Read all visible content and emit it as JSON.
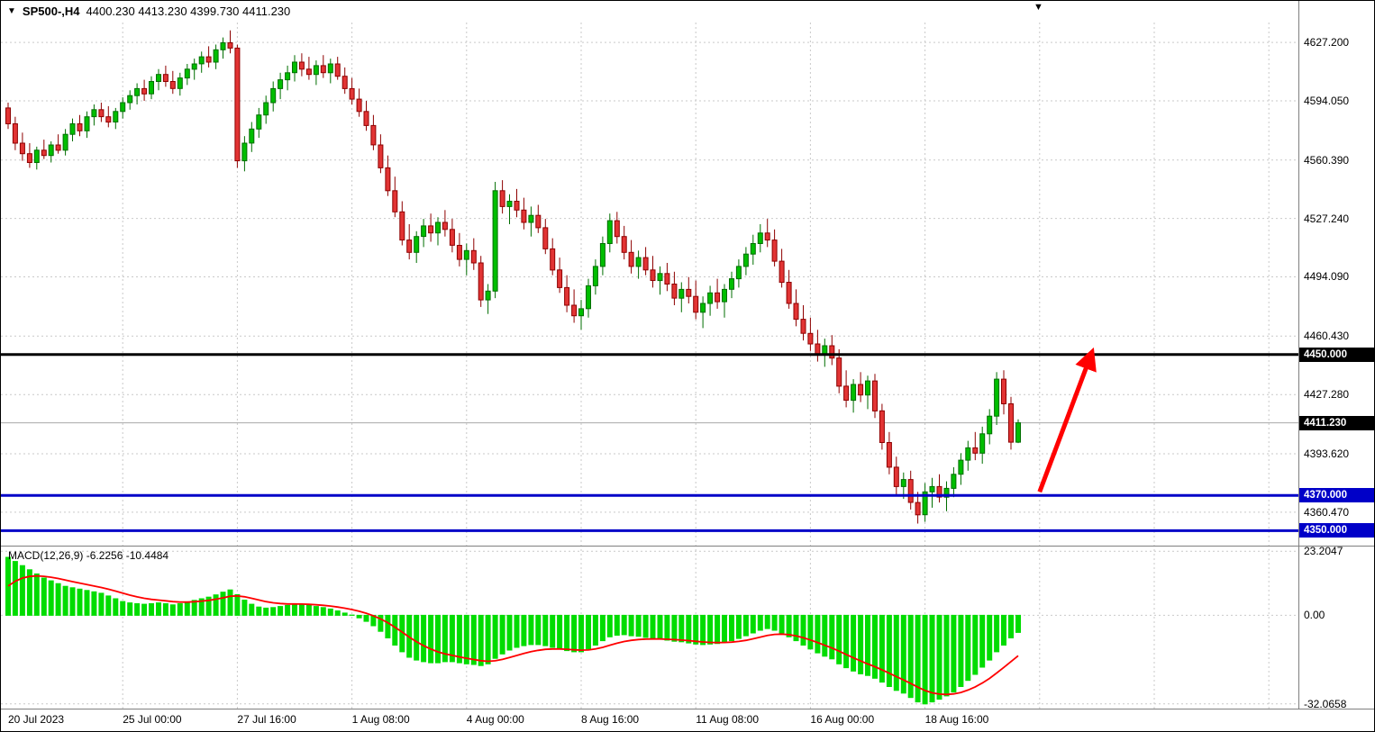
{
  "header": {
    "dropdown_icon": "▼",
    "symbol": "SP500-,H4",
    "ohlc": "4400.230 4413.230 4399.730 4411.230"
  },
  "icons": {
    "shift_marker": "▼"
  },
  "colors": {
    "candle_up": "#00BE00",
    "candle_up_border": "#006E00",
    "candle_down": "#E23434",
    "candle_down_border": "#8E0000",
    "macd_hist": "#00DC00",
    "macd_signal": "#FF0000",
    "grid": "#C9C9C9",
    "separator": "#7F7F7F",
    "current_price_line": "#A8A8A8",
    "level_black": "#000000",
    "level_blue": "#0000C8",
    "arrow": "#FF0000"
  },
  "chart_data": {
    "type": "candlestick",
    "symbol": "SP500",
    "timeframe": "H4",
    "ylim": [
      4342,
      4638.5
    ],
    "y_ticks": [
      {
        "value": 4627.2,
        "label": "4627.200"
      },
      {
        "value": 4594.05,
        "label": "4594.050"
      },
      {
        "value": 4560.39,
        "label": "4560.390"
      },
      {
        "value": 4527.24,
        "label": "4527.240"
      },
      {
        "value": 4494.09,
        "label": "4494.090"
      },
      {
        "value": 4460.43,
        "label": "4460.430"
      },
      {
        "value": 4427.28,
        "label": "4427.280"
      },
      {
        "value": 4393.62,
        "label": "4393.620"
      },
      {
        "value": 4360.47,
        "label": "4360.470"
      }
    ],
    "x_ticks": [
      {
        "bar": 0,
        "label": "20 Jul 2023"
      },
      {
        "bar": 16,
        "label": "25 Jul 00:00"
      },
      {
        "bar": 32,
        "label": "27 Jul 16:00"
      },
      {
        "bar": 48,
        "label": "1 Aug 08:00"
      },
      {
        "bar": 64,
        "label": "4 Aug 00:00"
      },
      {
        "bar": 80,
        "label": "8 Aug 16:00"
      },
      {
        "bar": 96,
        "label": "11 Aug 08:00"
      },
      {
        "bar": 112,
        "label": "16 Aug 00:00"
      },
      {
        "bar": 128,
        "label": "18 Aug 16:00"
      }
    ],
    "grid_extra_bars": [
      144,
      160,
      176
    ],
    "levels": [
      {
        "price": 4450,
        "label": "4450.000",
        "color": "#000000"
      },
      {
        "price": 4370,
        "label": "4370.000",
        "color": "#0000C8"
      },
      {
        "price": 4350,
        "label": "4350.000",
        "color": "#0000C8"
      }
    ],
    "current_price": {
      "price": 4411.23,
      "label": "4411.230",
      "tag_color": "#000000"
    },
    "trend_arrow": {
      "from_bar": 144,
      "from_price": 4372,
      "to_bar": 151,
      "to_price": 4448,
      "color": "#FF0000"
    },
    "candles": [
      [
        4590,
        4593,
        4578,
        4581
      ],
      [
        4581,
        4585,
        4566,
        4570
      ],
      [
        4570,
        4576,
        4560,
        4564
      ],
      [
        4564,
        4570,
        4556,
        4559
      ],
      [
        4559,
        4568,
        4555,
        4566
      ],
      [
        4566,
        4572,
        4561,
        4563
      ],
      [
        4563,
        4571,
        4559,
        4569
      ],
      [
        4569,
        4575,
        4564,
        4566
      ],
      [
        4566,
        4578,
        4563,
        4575
      ],
      [
        4575,
        4584,
        4571,
        4581
      ],
      [
        4581,
        4586,
        4574,
        4577
      ],
      [
        4577,
        4588,
        4573,
        4585
      ],
      [
        4585,
        4592,
        4580,
        4589
      ],
      [
        4589,
        4593,
        4582,
        4585
      ],
      [
        4585,
        4591,
        4579,
        4582
      ],
      [
        4582,
        4590,
        4578,
        4588
      ],
      [
        4588,
        4596,
        4584,
        4593
      ],
      [
        4593,
        4600,
        4589,
        4597
      ],
      [
        4597,
        4604,
        4592,
        4601
      ],
      [
        4601,
        4606,
        4594,
        4598
      ],
      [
        4598,
        4608,
        4595,
        4605
      ],
      [
        4605,
        4612,
        4600,
        4609
      ],
      [
        4609,
        4614,
        4602,
        4605
      ],
      [
        4605,
        4611,
        4598,
        4601
      ],
      [
        4601,
        4610,
        4597,
        4607
      ],
      [
        4607,
        4615,
        4603,
        4612
      ],
      [
        4612,
        4618,
        4606,
        4615
      ],
      [
        4615,
        4622,
        4610,
        4619
      ],
      [
        4619,
        4625,
        4613,
        4616
      ],
      [
        4616,
        4626,
        4612,
        4623
      ],
      [
        4623,
        4630,
        4618,
        4627
      ],
      [
        4627,
        4634,
        4621,
        4624
      ],
      [
        4624,
        4626,
        4556,
        4560
      ],
      [
        4560,
        4574,
        4554,
        4570
      ],
      [
        4570,
        4582,
        4565,
        4578
      ],
      [
        4578,
        4590,
        4573,
        4586
      ],
      [
        4586,
        4597,
        4581,
        4593
      ],
      [
        4593,
        4605,
        4588,
        4601
      ],
      [
        4601,
        4610,
        4595,
        4606
      ],
      [
        4606,
        4614,
        4600,
        4610
      ],
      [
        4610,
        4620,
        4605,
        4616
      ],
      [
        4616,
        4621,
        4608,
        4612
      ],
      [
        4612,
        4619,
        4606,
        4609
      ],
      [
        4609,
        4617,
        4603,
        4614
      ],
      [
        4614,
        4620,
        4607,
        4610
      ],
      [
        4610,
        4618,
        4604,
        4615
      ],
      [
        4615,
        4619,
        4606,
        4608
      ],
      [
        4608,
        4613,
        4598,
        4601
      ],
      [
        4601,
        4607,
        4592,
        4595
      ],
      [
        4595,
        4601,
        4585,
        4588
      ],
      [
        4588,
        4594,
        4577,
        4580
      ],
      [
        4580,
        4586,
        4566,
        4569
      ],
      [
        4569,
        4575,
        4553,
        4556
      ],
      [
        4556,
        4563,
        4540,
        4543
      ],
      [
        4543,
        4551,
        4528,
        4531
      ],
      [
        4531,
        4537,
        4512,
        4515
      ],
      [
        4515,
        4524,
        4504,
        4508
      ],
      [
        4508,
        4520,
        4502,
        4517
      ],
      [
        4517,
        4527,
        4511,
        4523
      ],
      [
        4523,
        4530,
        4514,
        4519
      ],
      [
        4519,
        4528,
        4512,
        4525
      ],
      [
        4525,
        4532,
        4517,
        4521
      ],
      [
        4521,
        4527,
        4508,
        4512
      ],
      [
        4512,
        4519,
        4500,
        4504
      ],
      [
        4504,
        4513,
        4495,
        4509
      ],
      [
        4509,
        4516,
        4498,
        4502
      ],
      [
        4502,
        4506,
        4477,
        4481
      ],
      [
        4481,
        4490,
        4473,
        4486
      ],
      [
        4486,
        4548,
        4482,
        4543
      ],
      [
        4543,
        4549,
        4530,
        4534
      ],
      [
        4534,
        4541,
        4524,
        4537
      ],
      [
        4537,
        4544,
        4528,
        4532
      ],
      [
        4532,
        4539,
        4521,
        4525
      ],
      [
        4525,
        4534,
        4517,
        4529
      ],
      [
        4529,
        4535,
        4519,
        4522
      ],
      [
        4522,
        4527,
        4507,
        4510
      ],
      [
        4510,
        4516,
        4495,
        4498
      ],
      [
        4498,
        4505,
        4485,
        4488
      ],
      [
        4488,
        4495,
        4474,
        4478
      ],
      [
        4478,
        4487,
        4468,
        4472
      ],
      [
        4472,
        4481,
        4464,
        4476
      ],
      [
        4476,
        4493,
        4471,
        4489
      ],
      [
        4489,
        4504,
        4484,
        4500
      ],
      [
        4500,
        4517,
        4495,
        4513
      ],
      [
        4513,
        4530,
        4508,
        4526
      ],
      [
        4526,
        4531,
        4513,
        4517
      ],
      [
        4517,
        4523,
        4504,
        4508
      ],
      [
        4508,
        4515,
        4496,
        4500
      ],
      [
        4500,
        4509,
        4493,
        4505
      ],
      [
        4505,
        4511,
        4495,
        4498
      ],
      [
        4498,
        4506,
        4488,
        4492
      ],
      [
        4492,
        4500,
        4484,
        4496
      ],
      [
        4496,
        4502,
        4486,
        4490
      ],
      [
        4490,
        4497,
        4478,
        4482
      ],
      [
        4482,
        4491,
        4474,
        4487
      ],
      [
        4487,
        4494,
        4479,
        4483
      ],
      [
        4483,
        4492,
        4470,
        4474
      ],
      [
        4474,
        4483,
        4465,
        4479
      ],
      [
        4479,
        4489,
        4472,
        4485
      ],
      [
        4485,
        4493,
        4476,
        4480
      ],
      [
        4480,
        4490,
        4471,
        4487
      ],
      [
        4487,
        4497,
        4482,
        4493
      ],
      [
        4493,
        4504,
        4488,
        4500
      ],
      [
        4500,
        4511,
        4495,
        4507
      ],
      [
        4507,
        4518,
        4501,
        4513
      ],
      [
        4513,
        4524,
        4508,
        4519
      ],
      [
        4519,
        4527,
        4511,
        4515
      ],
      [
        4515,
        4521,
        4500,
        4503
      ],
      [
        4503,
        4510,
        4488,
        4491
      ],
      [
        4491,
        4498,
        4476,
        4479
      ],
      [
        4479,
        4487,
        4466,
        4470
      ],
      [
        4470,
        4478,
        4458,
        4462
      ],
      [
        4462,
        4471,
        4452,
        4456
      ],
      [
        4456,
        4464,
        4446,
        4450
      ],
      [
        4450,
        4459,
        4443,
        4455
      ],
      [
        4455,
        4461,
        4444,
        4448
      ],
      [
        4448,
        4453,
        4428,
        4432
      ],
      [
        4432,
        4441,
        4420,
        4424
      ],
      [
        4424,
        4436,
        4417,
        4433
      ],
      [
        4433,
        4440,
        4423,
        4427
      ],
      [
        4427,
        4438,
        4419,
        4435
      ],
      [
        4435,
        4439,
        4414,
        4418
      ],
      [
        4418,
        4422,
        4396,
        4400
      ],
      [
        4400,
        4406,
        4382,
        4386
      ],
      [
        4386,
        4392,
        4370,
        4375
      ],
      [
        4375,
        4383,
        4368,
        4379
      ],
      [
        4379,
        4384,
        4362,
        4366
      ],
      [
        4366,
        4372,
        4354,
        4359
      ],
      [
        4359,
        4377,
        4355,
        4372
      ],
      [
        4372,
        4380,
        4363,
        4375
      ],
      [
        4375,
        4382,
        4366,
        4369
      ],
      [
        4369,
        4378,
        4361,
        4374
      ],
      [
        4374,
        4386,
        4369,
        4382
      ],
      [
        4382,
        4394,
        4376,
        4390
      ],
      [
        4390,
        4401,
        4384,
        4397
      ],
      [
        4397,
        4406,
        4390,
        4394
      ],
      [
        4394,
        4409,
        4388,
        4405
      ],
      [
        4405,
        4419,
        4399,
        4415
      ],
      [
        4415,
        4440,
        4410,
        4436
      ],
      [
        4436,
        4441,
        4416,
        4422
      ],
      [
        4422,
        4426,
        4396,
        4400.2
      ],
      [
        4400.2,
        4413.2,
        4399.7,
        4411.2
      ]
    ],
    "macd": {
      "label": "MACD(12,26,9) -6.2256 -10.4484",
      "ylim": [
        -33.8,
        24.6
      ],
      "y_ticks": [
        {
          "value": 23.2047,
          "label": "23.2047"
        },
        {
          "value": 0,
          "label": "0.00"
        },
        {
          "value": -32.0658,
          "label": "-32.0658"
        }
      ],
      "signal_ema_period": 9,
      "signal_seed": 8,
      "hist": [
        21,
        19.5,
        18,
        16.5,
        15,
        13.5,
        12.5,
        11.5,
        10.5,
        10,
        9.5,
        9,
        8.5,
        8,
        7,
        6,
        5,
        4.5,
        4.2,
        4,
        4.2,
        4.5,
        4.2,
        3.8,
        4.2,
        4.8,
        5.4,
        6,
        6.6,
        7.4,
        8.4,
        9.2,
        7.5,
        5.5,
        4,
        3,
        2.6,
        2.8,
        3.2,
        3.6,
        4,
        4,
        3.6,
        3.2,
        2.8,
        2.3,
        1.6,
        0.8,
        0.1,
        -0.9,
        -2.2,
        -3.8,
        -5.8,
        -8.2,
        -10.8,
        -13.2,
        -15.2,
        -16.2,
        -16.8,
        -17.2,
        -17.2,
        -16.8,
        -16.8,
        -17.2,
        -17.6,
        -17.8,
        -18.2,
        -17.6,
        -15.6,
        -14,
        -12.6,
        -11.6,
        -11,
        -10.6,
        -10.6,
        -11,
        -11.6,
        -12.2,
        -12.8,
        -13.2,
        -13.2,
        -12.2,
        -10.8,
        -9.2,
        -7.8,
        -7.2,
        -7,
        -7.4,
        -7.6,
        -8,
        -8.4,
        -8.6,
        -9,
        -9.4,
        -9.6,
        -10,
        -10.4,
        -10.6,
        -10.4,
        -10.2,
        -9.8,
        -9.2,
        -8.4,
        -7.4,
        -6.4,
        -5.4,
        -4.8,
        -5.4,
        -6.4,
        -7.8,
        -9.2,
        -10.8,
        -12.2,
        -13.6,
        -14.8,
        -15.8,
        -17.6,
        -19,
        -20.2,
        -21.2,
        -21.8,
        -22.8,
        -24.2,
        -25.8,
        -27.2,
        -28.2,
        -29.8,
        -31.4,
        -32.1,
        -31.4,
        -30.4,
        -29.2,
        -27.8,
        -25.8,
        -23.6,
        -21.4,
        -18.8,
        -16.2,
        -13.2,
        -10.8,
        -8.2,
        -6.2
      ]
    }
  }
}
